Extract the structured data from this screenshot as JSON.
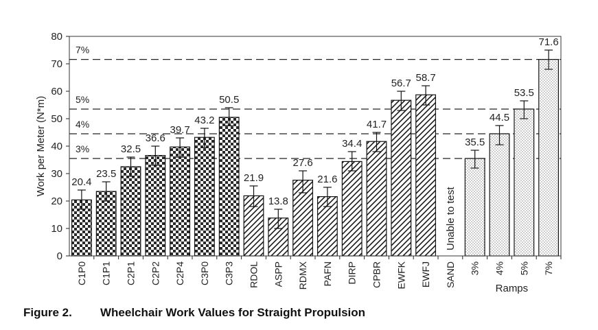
{
  "chart_data": {
    "type": "bar",
    "title": "",
    "xlabel": "",
    "ylabel": "Work per Meter (N*m)",
    "ylim": [
      0,
      80
    ],
    "yticks": [
      0,
      10,
      20,
      30,
      40,
      50,
      60,
      70,
      80
    ],
    "grid": false,
    "categories": [
      "C1P0",
      "C1P1",
      "C2P1",
      "C2P2",
      "C2P4",
      "C3P0",
      "C3P3",
      "RDOL",
      "ASPP",
      "RDMX",
      "PAFN",
      "DIRP",
      "CPBR",
      "EWFK",
      "EWFJ",
      "SAND",
      "3%",
      "4%",
      "5%",
      "7%"
    ],
    "values": [
      20.4,
      23.5,
      32.5,
      36.6,
      39.7,
      43.2,
      50.5,
      21.9,
      13.8,
      27.6,
      21.6,
      34.4,
      41.7,
      56.7,
      58.7,
      null,
      35.5,
      44.5,
      53.5,
      71.6
    ],
    "value_labels": [
      "20.4",
      "23.5",
      "32.5",
      "36.6",
      "39.7",
      "43.2",
      "50.5",
      "21.9",
      "13.8",
      "27.6",
      "21.6",
      "34.4",
      "41.7",
      "56.7",
      "58.7",
      "",
      "35.5",
      "44.5",
      "53.5",
      "71.6"
    ],
    "error_low": [
      17.0,
      20.0,
      29.0,
      33.0,
      36.0,
      39.5,
      47.5,
      18.0,
      10.0,
      23.0,
      18.0,
      31.0,
      38.0,
      53.0,
      55.0,
      null,
      32.0,
      40.5,
      50.0,
      68.0
    ],
    "error_high": [
      24.0,
      27.0,
      36.0,
      40.0,
      43.0,
      46.5,
      54.0,
      25.5,
      17.0,
      31.0,
      25.0,
      38.0,
      45.0,
      60.0,
      62.0,
      null,
      38.5,
      47.5,
      56.5,
      75.0
    ],
    "bar_patterns": [
      "checker",
      "checker",
      "checker",
      "checker",
      "checker",
      "checker",
      "checker",
      "hatch",
      "hatch",
      "hatch",
      "hatch",
      "hatch",
      "hatch",
      "hatch",
      "hatch",
      "none",
      "dots",
      "dots",
      "dots",
      "dots"
    ],
    "reference_lines": [
      {
        "label": "3%",
        "value": 35.5
      },
      {
        "label": "4%",
        "value": 44.5
      },
      {
        "label": "5%",
        "value": 53.5
      },
      {
        "label": "7%",
        "value": 71.6
      }
    ],
    "annotations": {
      "sand_note": "Unable to test",
      "ramps_label": "Ramps"
    }
  },
  "caption": {
    "figure_number": "Figure 2.",
    "text": "Wheelchair Work Values for Straight Propulsion"
  }
}
